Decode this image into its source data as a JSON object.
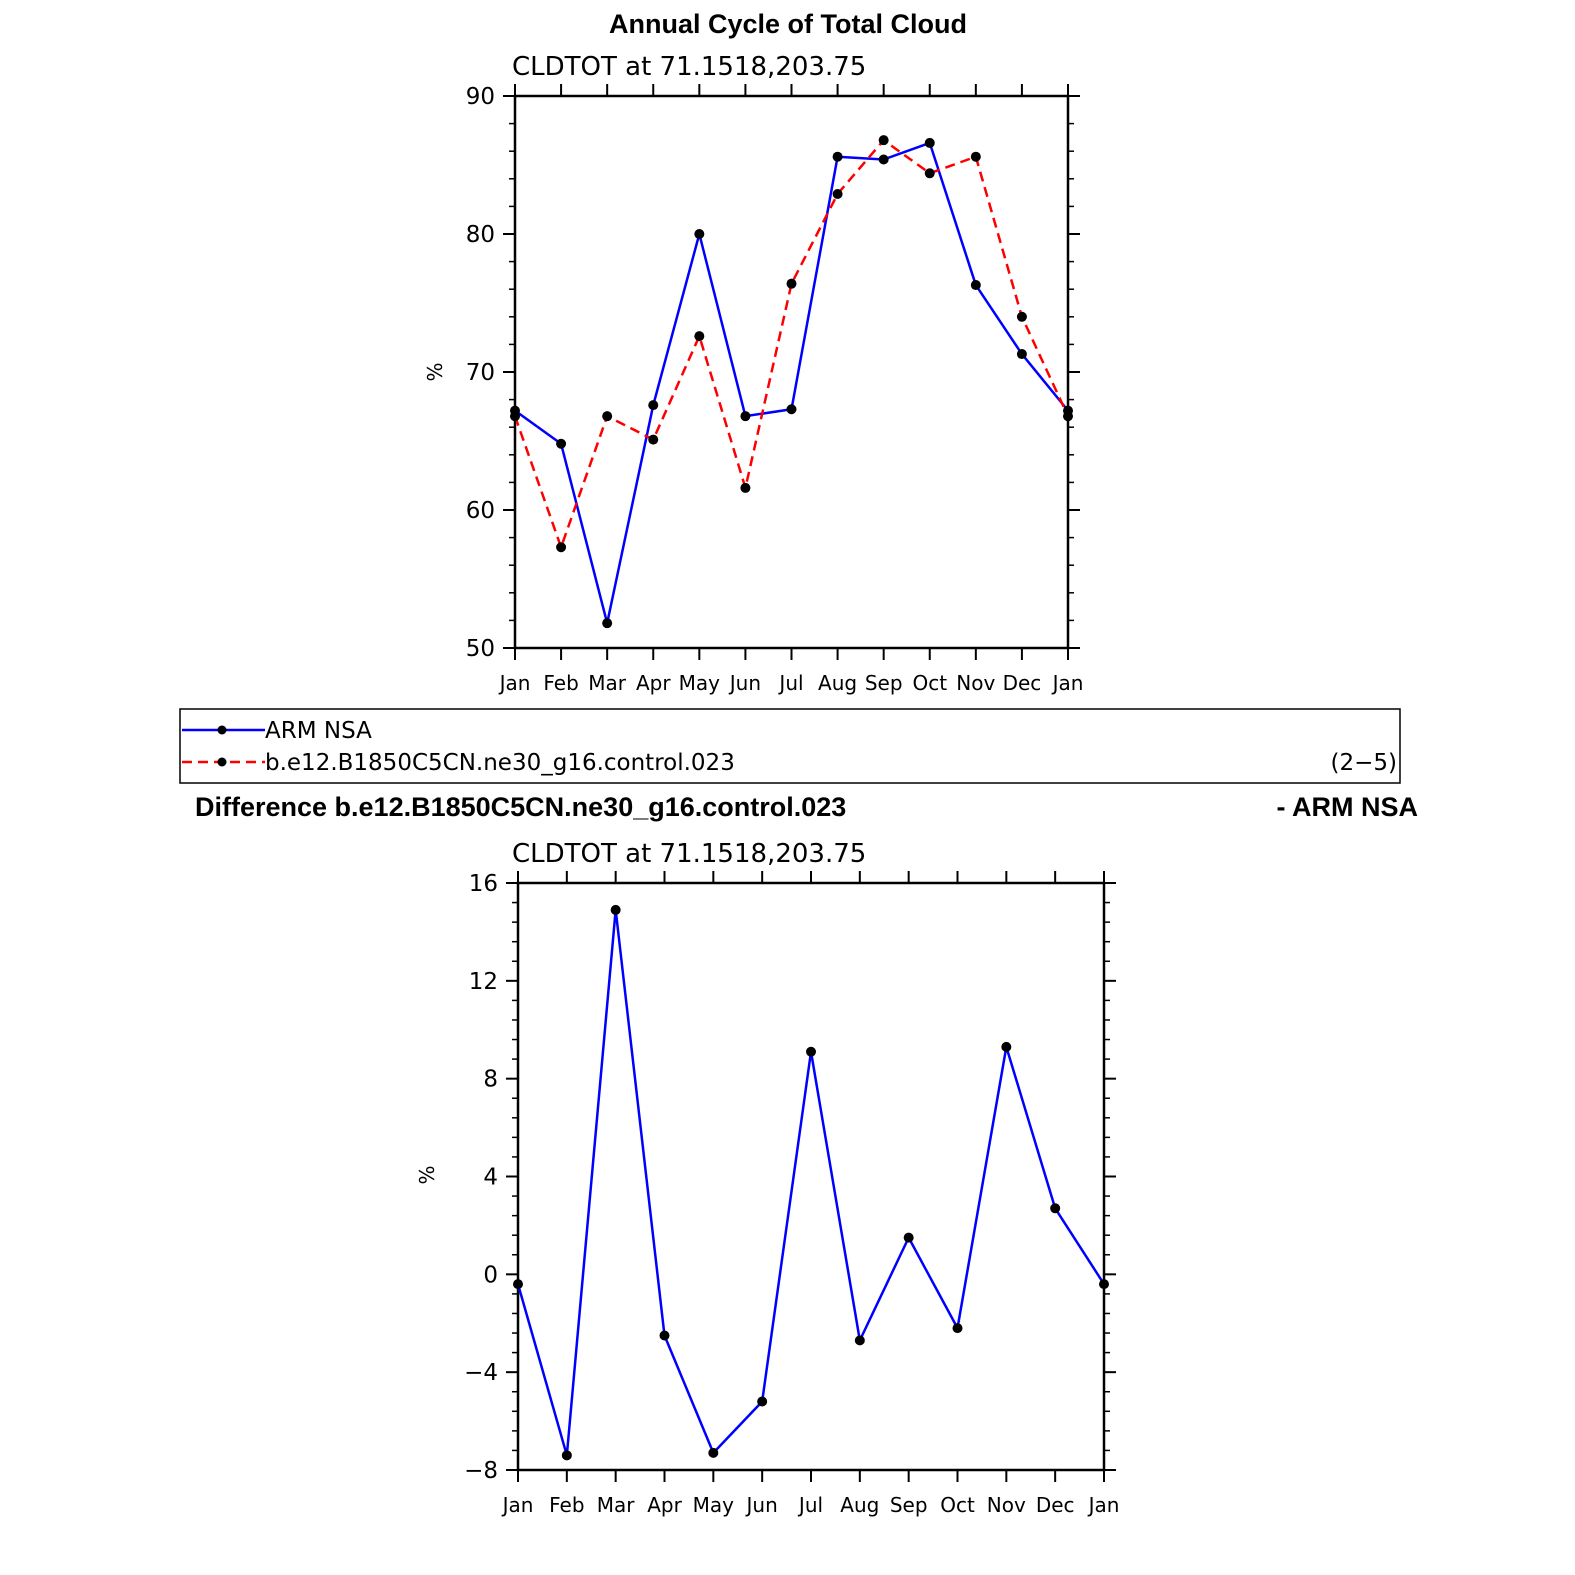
{
  "chart_data": [
    {
      "type": "line",
      "title": "Annual Cycle of Total Cloud",
      "subtitle": "CLDTOT at 71.1518,203.75",
      "ylabel": "%",
      "xlabel": "",
      "categories": [
        "Jan",
        "Feb",
        "Mar",
        "Apr",
        "May",
        "Jun",
        "Jul",
        "Aug",
        "Sep",
        "Oct",
        "Nov",
        "Dec",
        "Jan"
      ],
      "ylim": [
        50,
        90
      ],
      "yticks": [
        "50",
        "60",
        "70",
        "80",
        "90"
      ],
      "grid": false,
      "series": [
        {
          "name": "ARM NSA",
          "color": "#0000ff",
          "dash": "solid",
          "values": [
            67.2,
            64.8,
            51.8,
            67.6,
            80.0,
            66.8,
            67.3,
            85.6,
            85.4,
            86.6,
            76.3,
            71.3,
            67.2
          ]
        },
        {
          "name": "b.e12.B1850C5CN.ne30_g16.control.023",
          "color": "#ff0000",
          "dash": "dashed",
          "values": [
            66.8,
            57.3,
            66.8,
            65.1,
            72.6,
            61.6,
            76.4,
            82.9,
            86.8,
            84.4,
            85.6,
            74.0,
            66.8
          ]
        }
      ]
    },
    {
      "type": "line",
      "title_left": "Difference b.e12.B1850C5CN.ne30_g16.control.023",
      "title_right": "- ARM NSA",
      "subtitle": "CLDTOT at 71.1518,203.75",
      "ylabel": "%",
      "xlabel": "",
      "categories": [
        "Jan",
        "Feb",
        "Mar",
        "Apr",
        "May",
        "Jun",
        "Jul",
        "Aug",
        "Sep",
        "Oct",
        "Nov",
        "Dec",
        "Jan"
      ],
      "ylim": [
        -8,
        16
      ],
      "yticks": [
        "−8",
        "−4",
        "0",
        "4",
        "8",
        "12",
        "16"
      ],
      "grid": false,
      "series": [
        {
          "color": "#0000ff",
          "dash": "solid",
          "values": [
            -0.4,
            -7.4,
            14.9,
            -2.5,
            -7.3,
            -5.2,
            9.1,
            -2.7,
            1.5,
            -2.2,
            9.3,
            2.7,
            -0.4
          ]
        }
      ]
    }
  ],
  "legend": {
    "entries": [
      "ARM NSA",
      "b.e12.B1850C5CN.ne30_g16.control.023"
    ],
    "note": "(2−5)"
  }
}
